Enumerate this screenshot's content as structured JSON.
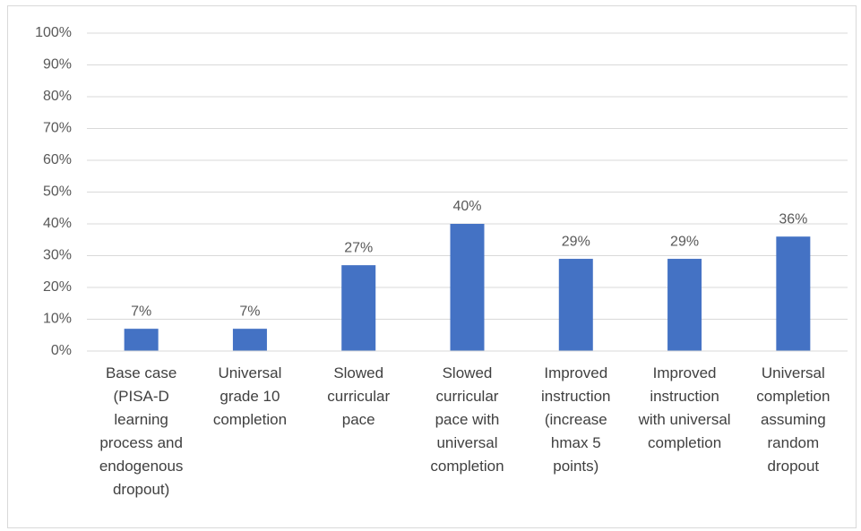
{
  "chart_data": {
    "type": "bar",
    "categories": [
      "Base case (PISA-D learning process and endogenous dropout)",
      "Universal grade 10 completion",
      "Slowed curricular pace",
      "Slowed curricular pace with universal completion",
      "Improved instruction (increase hmax 5 points)",
      "Improved instruction with universal completion",
      "Universal completion assuming random dropout"
    ],
    "values": [
      7,
      7,
      27,
      40,
      29,
      29,
      36
    ],
    "value_labels": [
      "7%",
      "7%",
      "27%",
      "40%",
      "29%",
      "29%",
      "36%"
    ],
    "color": "#4472c4",
    "ylim": [
      0,
      100
    ],
    "yticks": [
      {
        "value": 0,
        "label": "0%"
      },
      {
        "value": 10,
        "label": "10%"
      },
      {
        "value": 20,
        "label": "20%"
      },
      {
        "value": 30,
        "label": "30%"
      },
      {
        "value": 40,
        "label": "40%"
      },
      {
        "value": 50,
        "label": "50%"
      },
      {
        "value": 60,
        "label": "60%"
      },
      {
        "value": 70,
        "label": "70%"
      },
      {
        "value": 80,
        "label": "80%"
      },
      {
        "value": 90,
        "label": "90%"
      },
      {
        "value": 100,
        "label": "100%"
      }
    ],
    "grid": true
  }
}
